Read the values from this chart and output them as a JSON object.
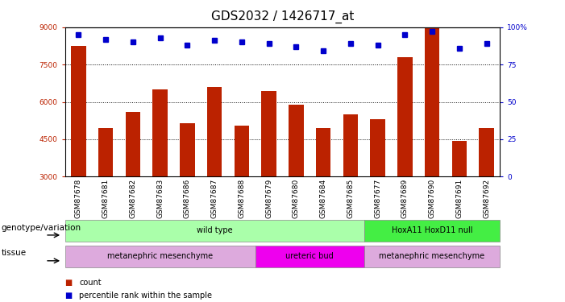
{
  "title": "GDS2032 / 1426717_at",
  "samples": [
    "GSM87678",
    "GSM87681",
    "GSM87682",
    "GSM87683",
    "GSM87686",
    "GSM87687",
    "GSM87688",
    "GSM87679",
    "GSM87680",
    "GSM87684",
    "GSM87685",
    "GSM87677",
    "GSM87689",
    "GSM87690",
    "GSM87691",
    "GSM87692"
  ],
  "counts": [
    8250,
    4950,
    5600,
    6500,
    5150,
    6600,
    5050,
    6450,
    5900,
    4950,
    5500,
    5300,
    7800,
    9500,
    4450,
    4950
  ],
  "percentile_ranks": [
    95,
    92,
    90,
    93,
    88,
    91,
    90,
    89,
    87,
    84,
    89,
    88,
    95,
    97,
    86,
    89
  ],
  "ymin": 3000,
  "ymax": 9000,
  "yticks": [
    3000,
    4500,
    6000,
    7500,
    9000
  ],
  "right_yticks": [
    0,
    25,
    50,
    75,
    100
  ],
  "right_ytick_labels": [
    "0",
    "25",
    "50",
    "75",
    "100%"
  ],
  "bar_color": "#bb2200",
  "dot_color": "#0000cc",
  "background_color": "#ffffff",
  "title_fontsize": 11,
  "tick_fontsize": 6.5,
  "row_label_fontsize": 7.5,
  "annotation_fontsize": 7,
  "genotype_groups": [
    {
      "label": "wild type",
      "start": 0,
      "end": 11,
      "color": "#aaffaa"
    },
    {
      "label": "HoxA11 HoxD11 null",
      "start": 11,
      "end": 16,
      "color": "#44ee44"
    }
  ],
  "tissue_groups": [
    {
      "label": "metanephric mesenchyme",
      "start": 0,
      "end": 7,
      "color": "#ddaadd"
    },
    {
      "label": "ureteric bud",
      "start": 7,
      "end": 11,
      "color": "#ee00ee"
    },
    {
      "label": "metanephric mesenchyme",
      "start": 11,
      "end": 16,
      "color": "#ddaadd"
    }
  ]
}
